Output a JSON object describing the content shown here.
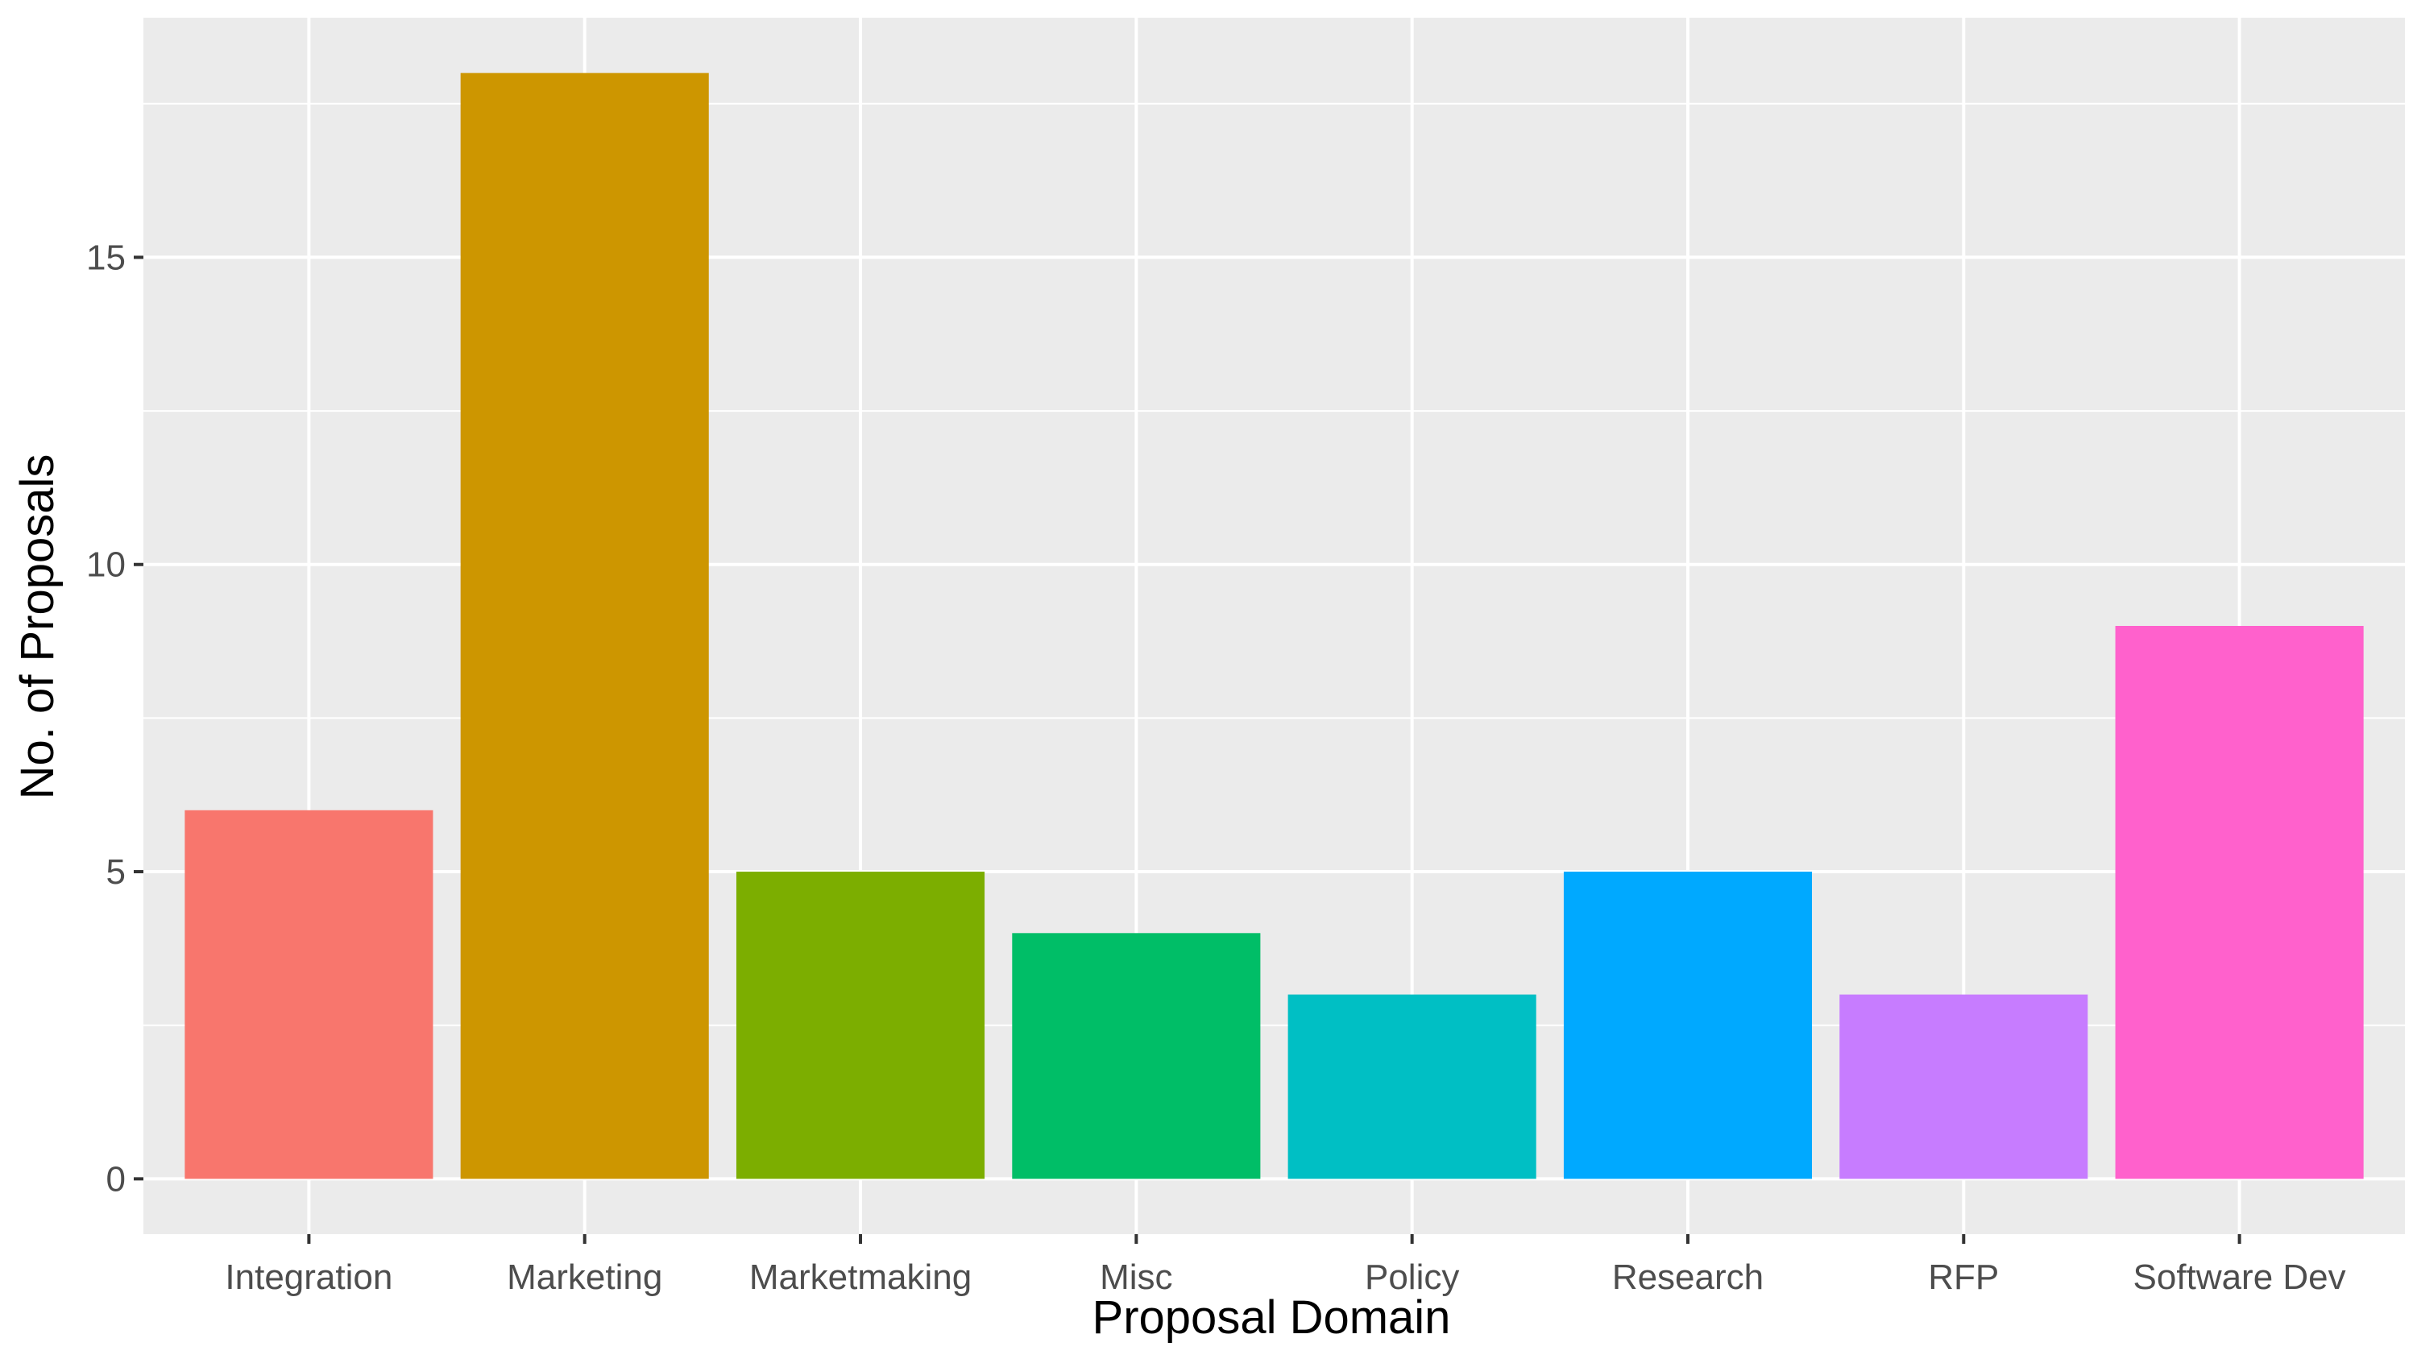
{
  "chart_data": {
    "type": "bar",
    "xlabel": "Proposal Domain",
    "ylabel": "No. of Proposals",
    "categories": [
      "Integration",
      "Marketing",
      "Marketmaking",
      "Misc",
      "Policy",
      "Research",
      "RFP",
      "Software Dev"
    ],
    "values": [
      6,
      18,
      5,
      4,
      3,
      5,
      3,
      9
    ],
    "colors": [
      "#F8766D",
      "#CD9600",
      "#7CAE00",
      "#00BE67",
      "#00BFC4",
      "#00A9FF",
      "#C77CFF",
      "#FF61CC"
    ],
    "ylim": [
      -0.9,
      18.9
    ],
    "yticks": [
      0,
      5,
      10,
      15
    ],
    "ytick_labels": [
      "0",
      "5",
      "10",
      "15"
    ],
    "grid": true,
    "legend": "none",
    "panel_background": "#EBEBEB",
    "grid_color": "#FFFFFF"
  }
}
